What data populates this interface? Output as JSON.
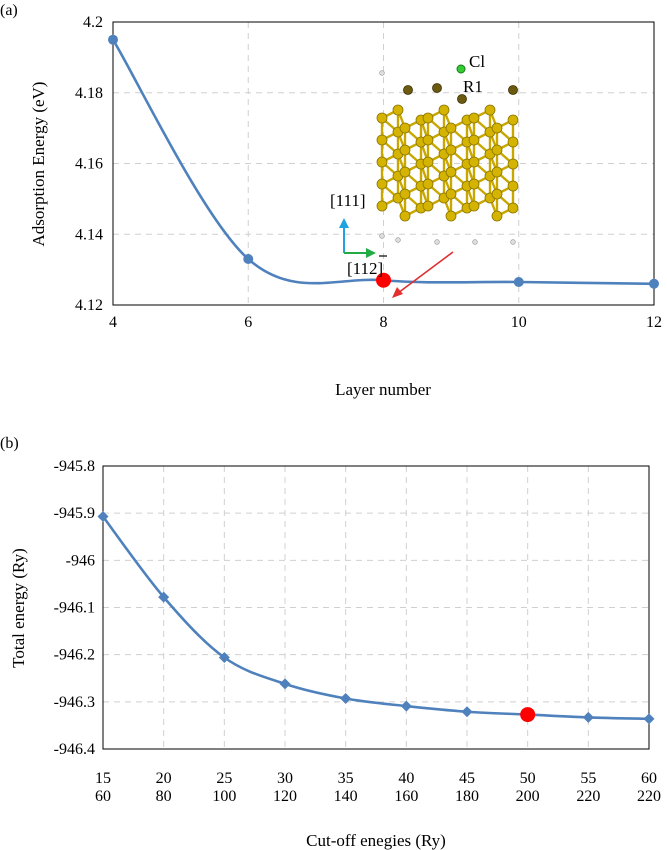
{
  "chart_data": [
    {
      "type": "line",
      "panel_label": "(a)",
      "xlabel": "Layer number",
      "ylabel": "Adsorption Energy (eV)",
      "xlim": [
        4,
        12
      ],
      "ylim": [
        4.12,
        4.2
      ],
      "x_ticks": [
        "4",
        "6",
        "8",
        "10",
        "12"
      ],
      "y_ticks": [
        "4.12",
        "4.14",
        "4.16",
        "4.18",
        "4.2"
      ],
      "grid": true,
      "series": [
        {
          "x": [
            4,
            6,
            8,
            10,
            12
          ],
          "y": [
            4.195,
            4.133,
            4.127,
            4.1265,
            4.126
          ],
          "color": "#4f81bd"
        }
      ],
      "highlight": {
        "x": 8,
        "y": 4.127,
        "color": "#ff0000"
      },
      "inset": {
        "atom_label": "Cl",
        "site_label": "R1",
        "direction_up": "[111]",
        "direction_right": "[112]",
        "atom_color": "#d4b400",
        "cl_color": "#33cc33",
        "up_arrow_color": "#1fa3e0",
        "right_arrow_color": "#22aa44",
        "pointer_color": "#e03030"
      }
    },
    {
      "type": "line",
      "panel_label": "(b)",
      "xlabel": "Cut-off enegies (Ry)",
      "ylabel": "Total energy (Ry)",
      "ylim": [
        -946.4,
        -945.8
      ],
      "categories_top": [
        "15",
        "20",
        "25",
        "30",
        "35",
        "40",
        "45",
        "50",
        "55",
        "60"
      ],
      "categories_bottom": [
        "60",
        "80",
        "100",
        "120",
        "140",
        "160",
        "180",
        "200",
        "220",
        "220"
      ],
      "y_ticks": [
        "-945.8",
        "-945.9",
        "-946",
        "-946.1",
        "-946.2",
        "-946.3",
        "-946.4"
      ],
      "grid": true,
      "series": [
        {
          "values": [
            -945.907,
            -946.078,
            -946.206,
            -946.262,
            -946.293,
            -946.309,
            -946.321,
            -946.327,
            -946.333,
            -946.336
          ],
          "color": "#4f81bd",
          "marker": "diamond"
        }
      ],
      "highlight": {
        "category": "50",
        "y": -946.327,
        "color": "#ff0000"
      }
    }
  ]
}
